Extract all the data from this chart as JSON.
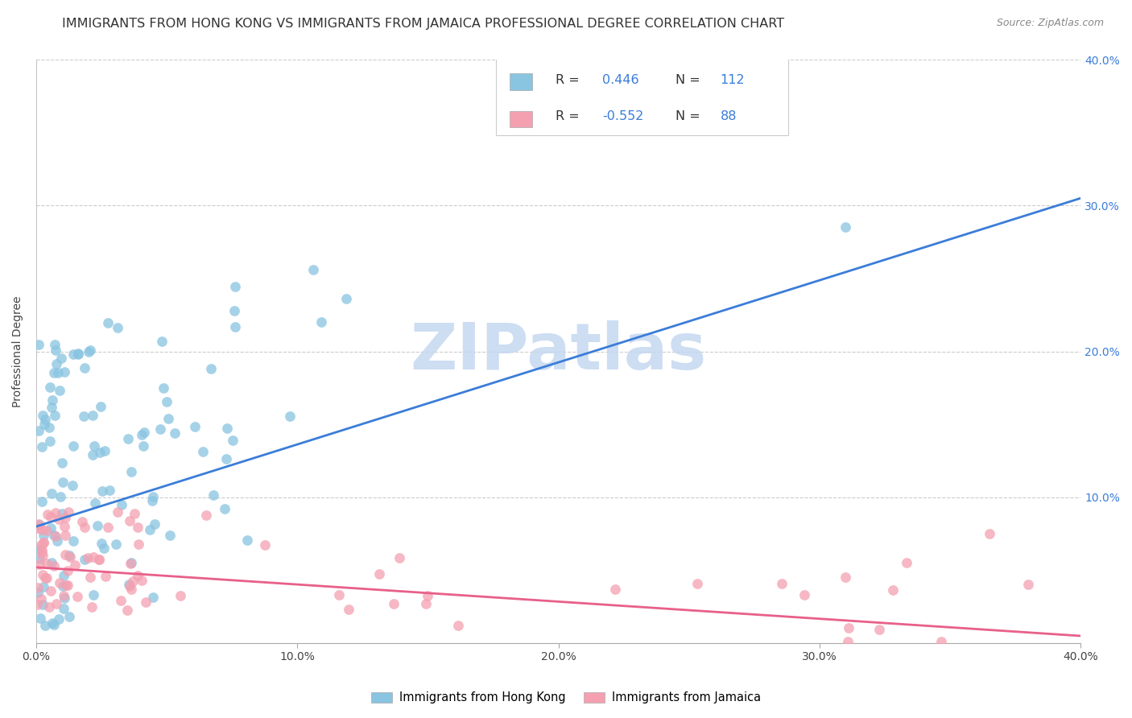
{
  "title": "IMMIGRANTS FROM HONG KONG VS IMMIGRANTS FROM JAMAICA PROFESSIONAL DEGREE CORRELATION CHART",
  "source": "Source: ZipAtlas.com",
  "ylabel": "Professional Degree",
  "xlim": [
    0.0,
    0.4
  ],
  "ylim": [
    0.0,
    0.4
  ],
  "hk_R": 0.446,
  "hk_N": 112,
  "jm_R": -0.552,
  "jm_N": 88,
  "hk_color": "#89C4E1",
  "jm_color": "#F4A0B0",
  "hk_line_color": "#3B7DD8",
  "jm_line_color": "#E8608A",
  "watermark_text": "ZIPatlas",
  "watermark_color": "#C5D8F0",
  "background_color": "#ffffff",
  "legend_label_hk": "Immigrants from Hong Kong",
  "legend_label_jm": "Immigrants from Jamaica",
  "title_fontsize": 11.5,
  "axis_label_fontsize": 10,
  "tick_fontsize": 10,
  "right_tick_color": "#3B7DD8",
  "hk_line_x0": 0.0,
  "hk_line_y0": 0.08,
  "hk_line_x1": 0.4,
  "hk_line_y1": 0.305,
  "jm_line_x0": 0.0,
  "jm_line_y0": 0.052,
  "jm_line_x1": 0.4,
  "jm_line_y1": 0.005,
  "hk_seed": 77,
  "jm_seed": 42
}
